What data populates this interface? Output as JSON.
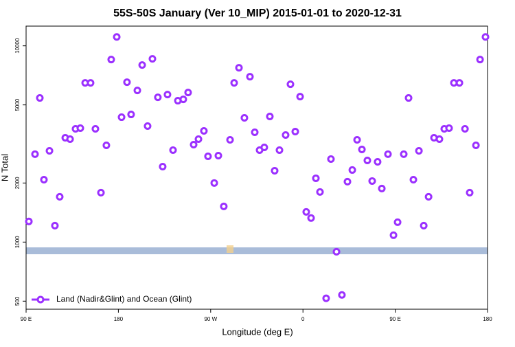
{
  "chart_data": {
    "type": "scatter",
    "title": "55S-50S January (Ver 10_MIP)   2015-01-01 to 2020-12-31",
    "x_label": "Longitude (deg E)",
    "y_label": "N Total",
    "xlim": [
      90,
      540
    ],
    "ylim": [
      455,
      12600
    ],
    "y_scale": "log",
    "xticks": [
      {
        "value": 90,
        "label": "90 E"
      },
      180,
      {
        "value": 270,
        "label": "90 W"
      },
      {
        "value": 360,
        "label": "0"
      },
      {
        "value": 450,
        "label": "90 E"
      },
      {
        "value": 540,
        "label": "180"
      }
    ],
    "yticks": [
      500,
      1000,
      2000,
      5000,
      10000
    ],
    "legend": "lower left",
    "series": [
      {
        "name": "Land (Nadir&Glint) and Ocean (Glint)",
        "color": "#9b30ff",
        "x": [
          92.7,
          98.7,
          103.4,
          107.4,
          112.8,
          118.1,
          122.8,
          128.2,
          132.9,
          138.2,
          142.9,
          147.6,
          152.9,
          157.6,
          163.0,
          168.3,
          173.0,
          178.4,
          183.1,
          188.4,
          192.4,
          198.5,
          203.2,
          208.5,
          213.2,
          218.5,
          223.2,
          227.9,
          233.3,
          238.0,
          243.3,
          248.0,
          253.4,
          258.1,
          263.4,
          267.4,
          273.5,
          277.5,
          282.8,
          288.9,
          292.9,
          297.6,
          302.9,
          308.3,
          313.0,
          317.7,
          322.3,
          327.7,
          332.4,
          337.1,
          343.1,
          347.8,
          352.5,
          357.2,
          363.2,
          367.9,
          372.6,
          376.6,
          382.6,
          387.3,
          392.7,
          398.0,
          403.4,
          408.1,
          412.8,
          417.5,
          422.8,
          427.5,
          432.8,
          436.9,
          442.9,
          448.3,
          452.3,
          458.3,
          463.0,
          467.7,
          473.1,
          477.8,
          482.5,
          487.8,
          493.1,
          497.8,
          502.5,
          507.2,
          512.6,
          518.0,
          522.6,
          528.7,
          532.7,
          538.0
        ],
        "values": [
          1274,
          2804,
          5424,
          2080,
          2917,
          1213,
          1702,
          3400,
          3346,
          3775,
          3805,
          6474,
          6474,
          3775,
          1786,
          3112,
          8510,
          11100,
          4328,
          6527,
          4470,
          5925,
          7980,
          3899,
          8580,
          5467,
          2424,
          5645,
          2941,
          5252,
          5337,
          5784,
          3137,
          3346,
          3685,
          2735,
          2000,
          2758,
          1520,
          3319,
          6474,
          7730,
          4294,
          6960,
          3626,
          2941,
          3038,
          4364,
          2310,
          2941,
          3511,
          6370,
          3655,
          5511,
          1425,
          1326,
          2114,
          1800,
          517,
          2648,
          893,
          538,
          2031,
          2329,
          3319,
          2965,
          2606,
          2047,
          2565,
          1874,
          2804,
          1084,
          1263,
          2804,
          5424,
          2080,
          2917,
          1213,
          1702,
          3400,
          3346,
          3775,
          3805,
          6474,
          6474,
          3775,
          1786,
          3112,
          8510,
          11100
        ]
      }
    ]
  }
}
